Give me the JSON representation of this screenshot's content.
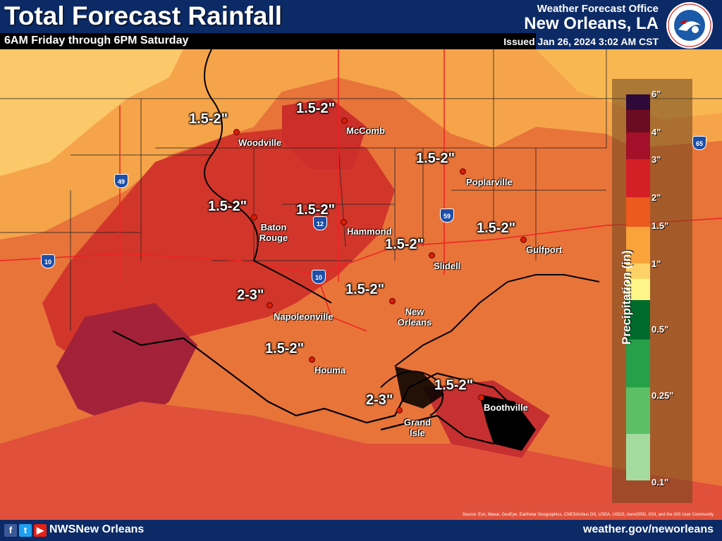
{
  "header": {
    "title": "Total Forecast Rainfall",
    "subtitle": "6AM Friday through 6PM Saturday",
    "office": "Weather Forecast Office",
    "city": "New Orleans, LA",
    "issued": "Issued Jan 26, 2024 3:02 AM CST",
    "seal_text": "NATIONAL WEATHER SERVICE"
  },
  "legend": {
    "title": "Precipitation (in)",
    "labels": [
      "6\"",
      "4\"",
      "3\"",
      "2\"",
      "1.5\"",
      "1\"",
      "0.5\"",
      "0.25\"",
      "0.1\""
    ],
    "colors": [
      "#2e0a3a",
      "#6b0d22",
      "#a3102a",
      "#d41f26",
      "#ec5a1e",
      "#f9a33a",
      "#fcd267",
      "#fff68a",
      "#006b2c",
      "#27a04a",
      "#5cbf66",
      "#a6dba0"
    ]
  },
  "cities": [
    {
      "name": "Woodville"
    },
    {
      "name": "McComb"
    },
    {
      "name": "Poplarville"
    },
    {
      "name": "Baton Rouge"
    },
    {
      "name": "Hammond"
    },
    {
      "name": "Slidell"
    },
    {
      "name": "Gulfport"
    },
    {
      "name": "Napoleonville"
    },
    {
      "name": "New Orleans"
    },
    {
      "name": "Houma"
    },
    {
      "name": "Grand Isle"
    },
    {
      "name": "Boothville"
    }
  ],
  "amounts": [
    "1.5-2\"",
    "1.5-2\"",
    "1.5-2\"",
    "1.5-2\"",
    "1.5-2\"",
    "1.5-2\"",
    "1.5-2\"",
    "2-3\"",
    "1.5-2\"",
    "1.5-2\"",
    "2-3\"",
    "1.5-2\""
  ],
  "highways": [
    "49",
    "12",
    "10",
    "10",
    "59",
    "65"
  ],
  "footer": {
    "handle": "NWSNew Orleans",
    "site": "weather.gov/neworleans",
    "attribution": "Source: Esri, Maxar, GeoEye, Earthstar Geographics, CNES/Airbus DS, USDA, USGS, AeroGRID, IGN, and the GIS User Community"
  }
}
